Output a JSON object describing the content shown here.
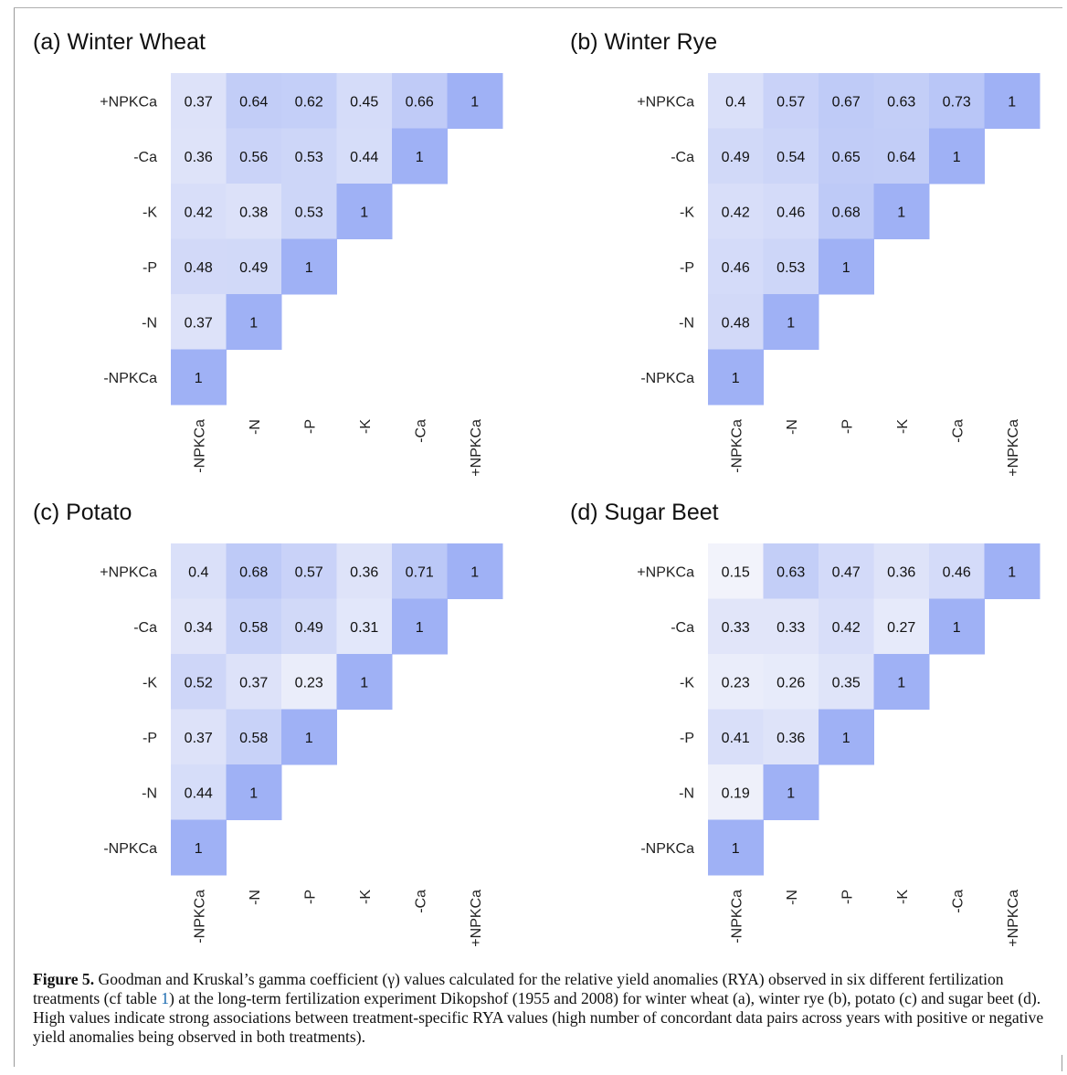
{
  "chart_data": [
    {
      "type": "heatmap",
      "title": "(a) Winter Wheat",
      "rows": [
        "+NPKCa",
        "-Ca",
        "-K",
        "-P",
        "-N",
        "-NPKCa"
      ],
      "columns": [
        "-NPKCa",
        "-N",
        "-P",
        "-K",
        "-Ca",
        "+NPKCa"
      ],
      "values": [
        [
          0.37,
          0.64,
          0.62,
          0.45,
          0.66,
          1
        ],
        [
          0.36,
          0.56,
          0.53,
          0.44,
          1,
          null
        ],
        [
          0.42,
          0.38,
          0.53,
          1,
          null,
          null
        ],
        [
          0.48,
          0.49,
          1,
          null,
          null,
          null
        ],
        [
          0.37,
          1,
          null,
          null,
          null,
          null
        ],
        [
          1,
          null,
          null,
          null,
          null,
          null
        ]
      ]
    },
    {
      "type": "heatmap",
      "title": "(b) Winter Rye",
      "rows": [
        "+NPKCa",
        "-Ca",
        "-K",
        "-P",
        "-N",
        "-NPKCa"
      ],
      "columns": [
        "-NPKCa",
        "-N",
        "-P",
        "-K",
        "-Ca",
        "+NPKCa"
      ],
      "values": [
        [
          0.4,
          0.57,
          0.67,
          0.63,
          0.73,
          1
        ],
        [
          0.49,
          0.54,
          0.65,
          0.64,
          1,
          null
        ],
        [
          0.42,
          0.46,
          0.68,
          1,
          null,
          null
        ],
        [
          0.46,
          0.53,
          1,
          null,
          null,
          null
        ],
        [
          0.48,
          1,
          null,
          null,
          null,
          null
        ],
        [
          1,
          null,
          null,
          null,
          null,
          null
        ]
      ]
    },
    {
      "type": "heatmap",
      "title": "(c) Potato",
      "rows": [
        "+NPKCa",
        "-Ca",
        "-K",
        "-P",
        "-N",
        "-NPKCa"
      ],
      "columns": [
        "-NPKCa",
        "-N",
        "-P",
        "-K",
        "-Ca",
        "+NPKCa"
      ],
      "values": [
        [
          0.4,
          0.68,
          0.57,
          0.36,
          0.71,
          1
        ],
        [
          0.34,
          0.58,
          0.49,
          0.31,
          1,
          null
        ],
        [
          0.52,
          0.37,
          0.23,
          1,
          null,
          null
        ],
        [
          0.37,
          0.58,
          1,
          null,
          null,
          null
        ],
        [
          0.44,
          1,
          null,
          null,
          null,
          null
        ],
        [
          1,
          null,
          null,
          null,
          null,
          null
        ]
      ]
    },
    {
      "type": "heatmap",
      "title": "(d) Sugar Beet",
      "rows": [
        "+NPKCa",
        "-Ca",
        "-K",
        "-P",
        "-N",
        "-NPKCa"
      ],
      "columns": [
        "-NPKCa",
        "-N",
        "-P",
        "-K",
        "-Ca",
        "+NPKCa"
      ],
      "values": [
        [
          0.15,
          0.63,
          0.47,
          0.36,
          0.46,
          1
        ],
        [
          0.33,
          0.33,
          0.42,
          0.27,
          1,
          null
        ],
        [
          0.23,
          0.26,
          0.35,
          1,
          null,
          null
        ],
        [
          0.41,
          0.36,
          1,
          null,
          null,
          null
        ],
        [
          0.19,
          1,
          null,
          null,
          null,
          null
        ],
        [
          1,
          null,
          null,
          null,
          null,
          null
        ]
      ]
    }
  ],
  "colors": {
    "low": "#f7f7fb",
    "high": "#9fb1f5"
  },
  "caption": {
    "label": "Figure 5.",
    "text_part1": " Goodman and Kruskal’s gamma coefficient (γ) values calculated for the relative yield anomalies (RYA) observed in six different fertilization treatments (cf table ",
    "link": "1",
    "text_part2": ") at the long-term fertilization experiment Dikopshof (1955 and 2008) for winter wheat (a), winter rye (b), potato (c) and sugar beet (d). High values indicate strong associations between treatment-specific RYA values (high number of concordant data pairs across years with positive or negative yield anomalies being observed in both treatments)."
  }
}
